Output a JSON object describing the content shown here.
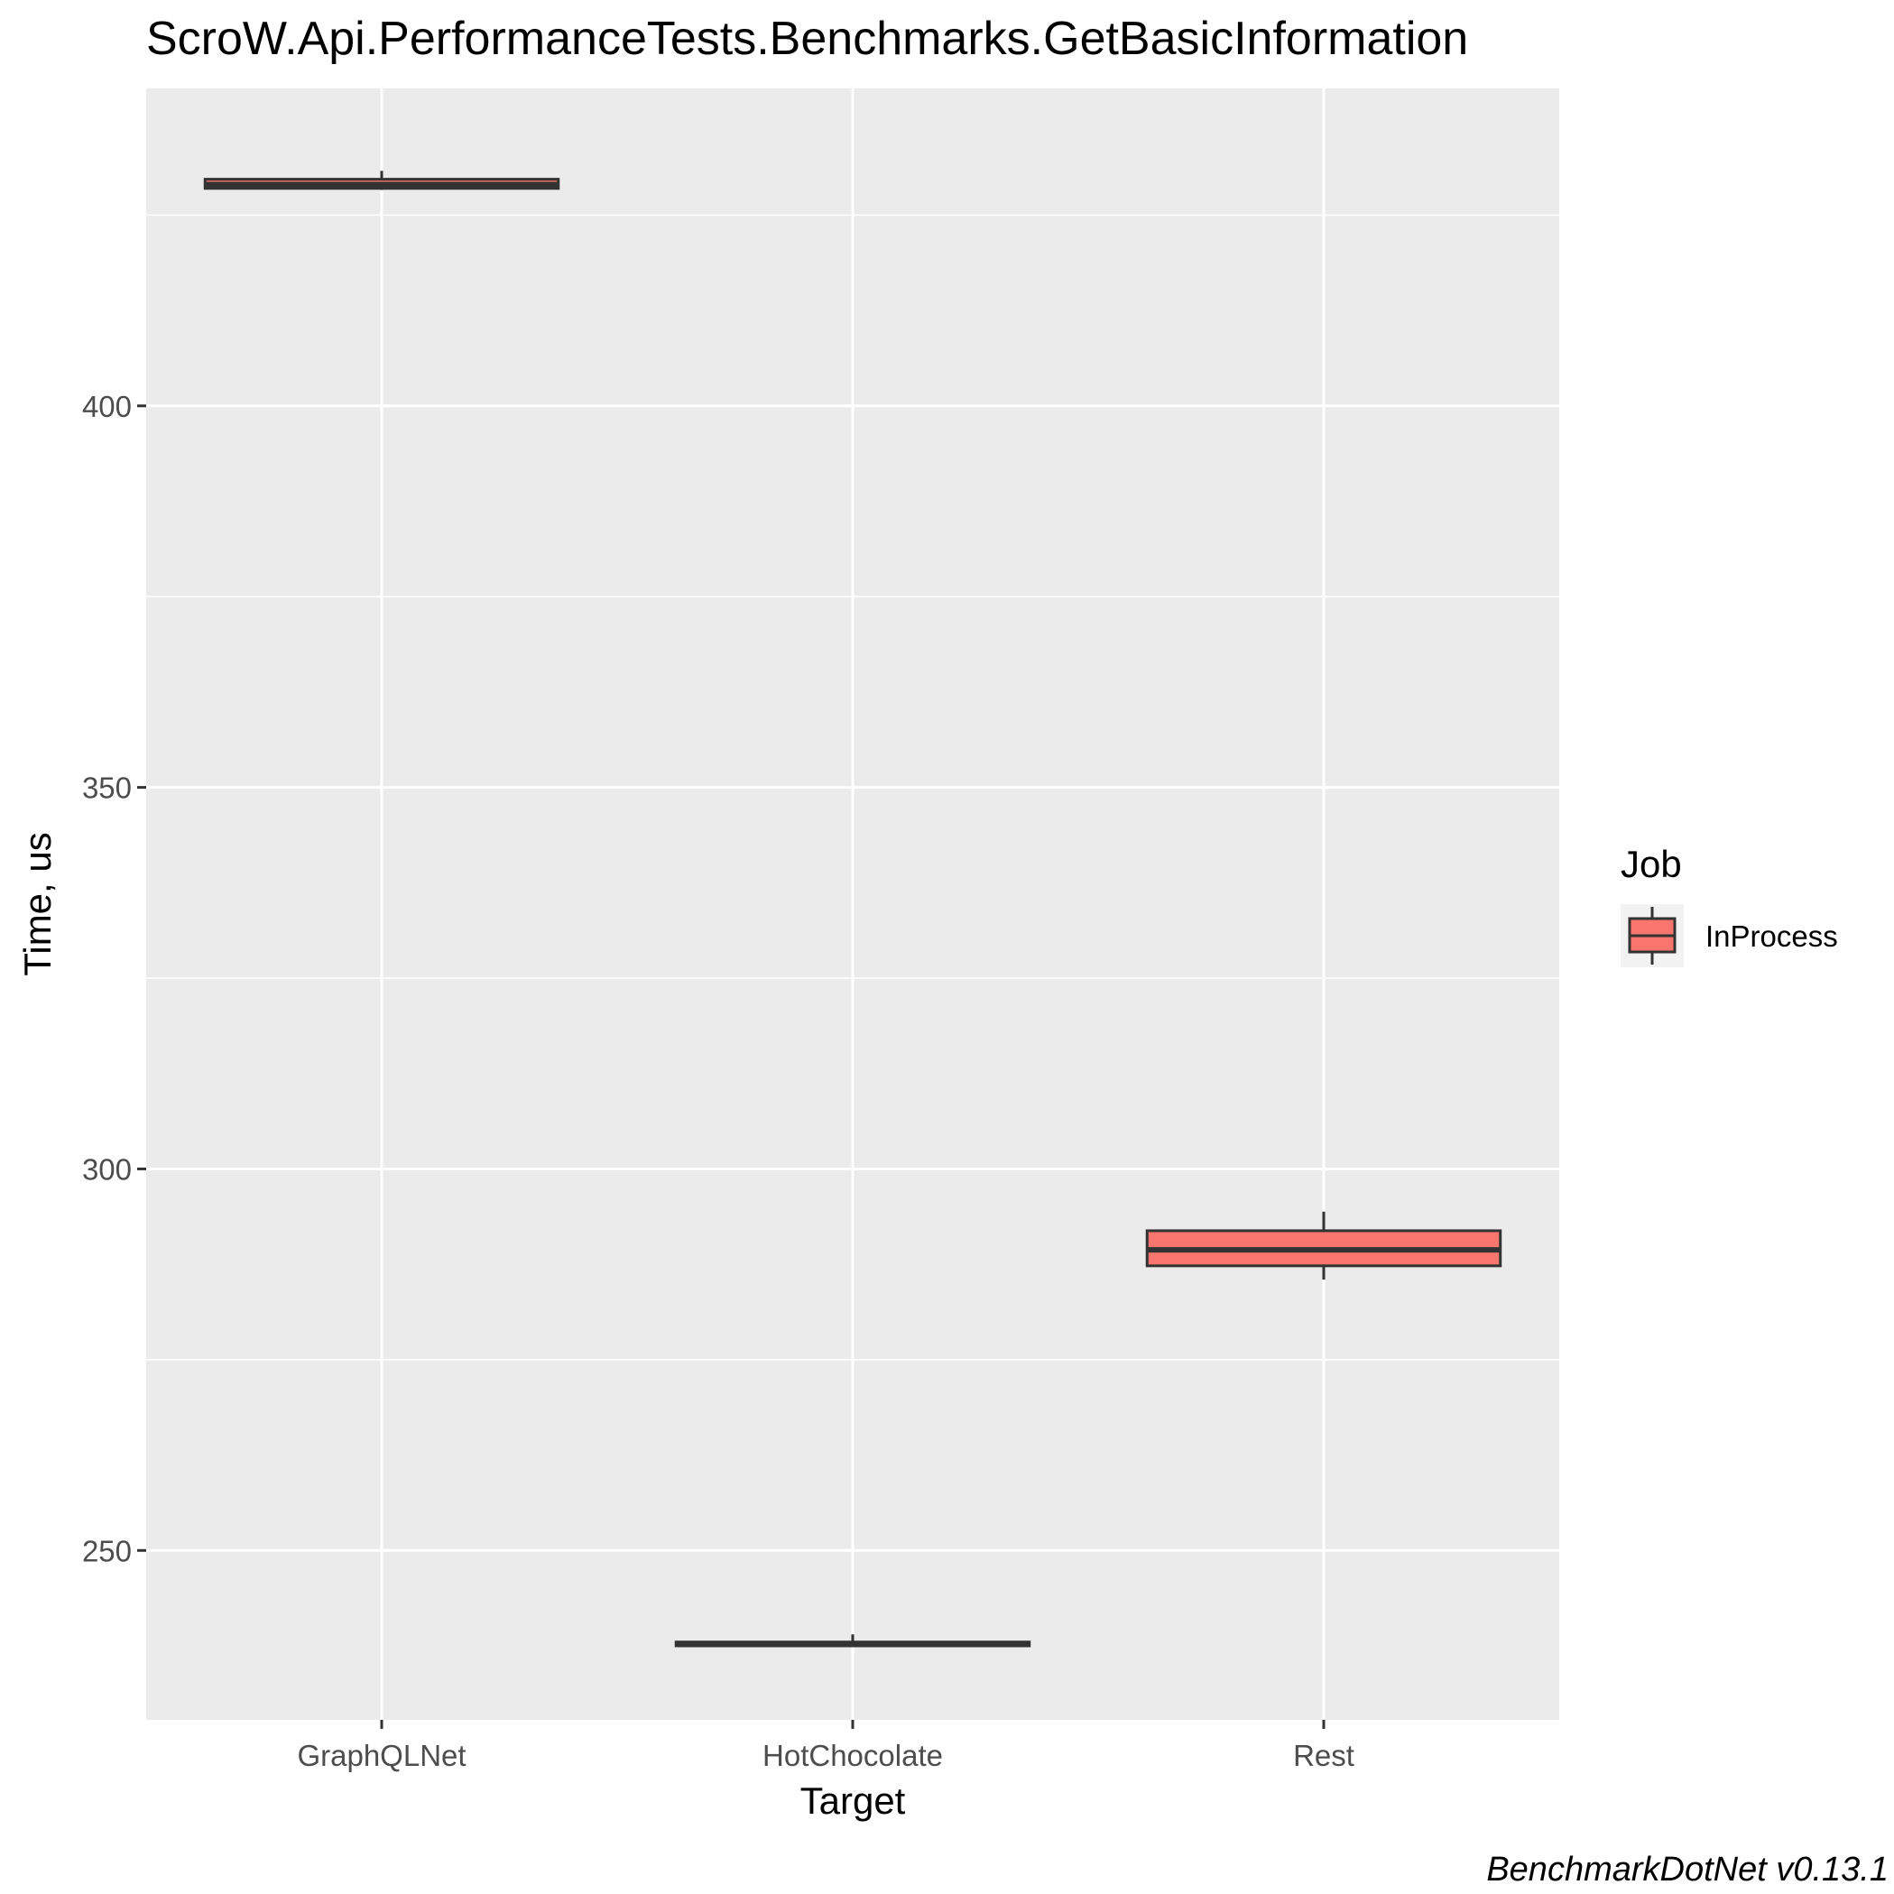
{
  "chart_data": {
    "type": "boxplot",
    "title": "ScroW.Api.PerformanceTests.Benchmarks.GetBasicInformation",
    "xlabel": "Target",
    "ylabel": "Time, us",
    "categories": [
      "GraphQLNet",
      "HotChocolate",
      "Rest"
    ],
    "ylim": [
      227.8,
      441.6
    ],
    "yticks": [
      250,
      300,
      350,
      400
    ],
    "grid": true,
    "legend": {
      "title": "Job",
      "position": "right",
      "entries": [
        {
          "label": "InProcess",
          "color": "#F8766D"
        }
      ]
    },
    "caption": "BenchmarkDotNet v0.13.1",
    "series": [
      {
        "name": "InProcess",
        "color": "#F8766D",
        "boxes": [
          {
            "category": "GraphQLNet",
            "min": 428.3,
            "q1": 428.5,
            "median": 429.0,
            "q3": 429.7,
            "max": 430.8
          },
          {
            "category": "HotChocolate",
            "min": 237.4,
            "q1": 237.5,
            "median": 237.7,
            "q3": 238.0,
            "max": 239.0
          },
          {
            "category": "Rest",
            "min": 285.5,
            "q1": 287.3,
            "median": 289.4,
            "q3": 291.9,
            "max": 294.4
          }
        ]
      }
    ]
  }
}
